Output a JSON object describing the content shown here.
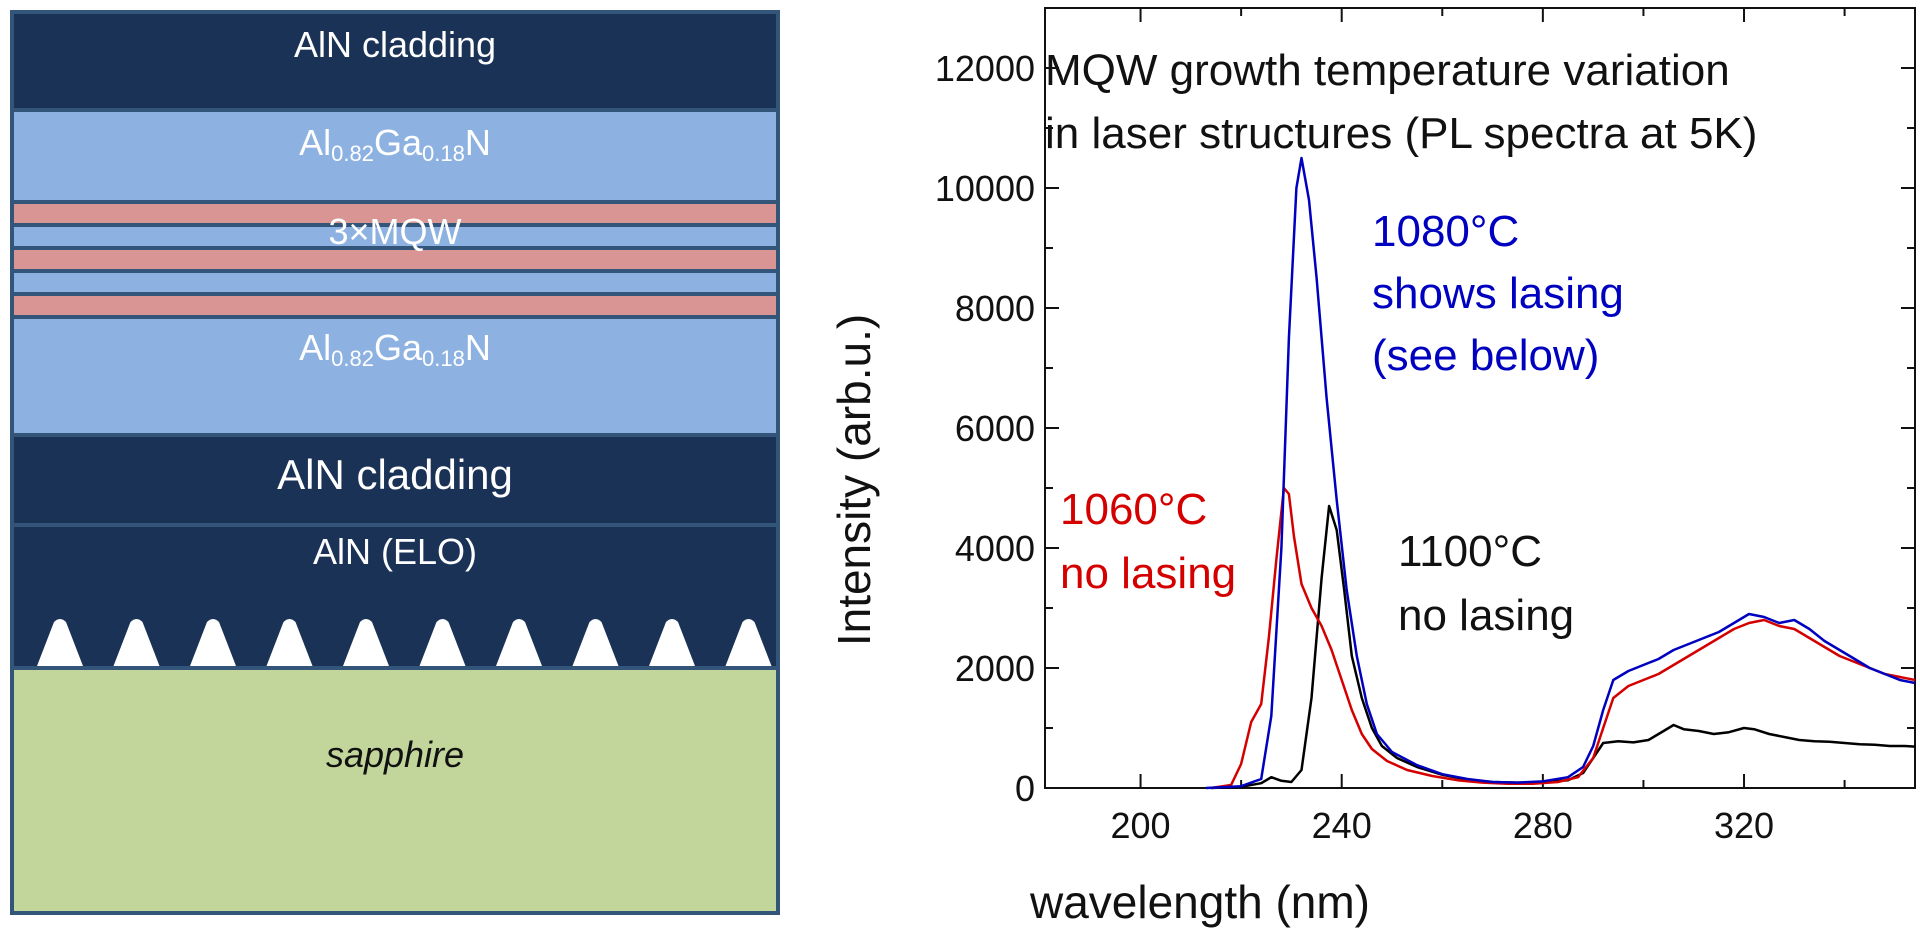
{
  "structure": {
    "layers": [
      {
        "key": "aln_top",
        "label": "AlN cladding"
      },
      {
        "key": "algan_top",
        "base": "Al",
        "sub1": "0.82",
        "mid": "Ga",
        "sub2": "0.18",
        "end": "N"
      },
      {
        "key": "mqw",
        "label": "3×MQW"
      },
      {
        "key": "algan_bottom",
        "base": "Al",
        "sub1": "0.82",
        "mid": "Ga",
        "sub2": "0.18",
        "end": "N"
      },
      {
        "key": "aln_mid",
        "label": "AlN cladding"
      },
      {
        "key": "aln_elo",
        "label": "AlN (ELO)"
      },
      {
        "key": "sapphire",
        "label": "sapphire"
      }
    ],
    "void_count": 10,
    "colors": {
      "navy": "#1b3257",
      "light_blue": "#8db2e2",
      "pink": "#d99594",
      "sapphire": "#c2d69b",
      "border": "#33557a"
    }
  },
  "chart_data": {
    "type": "line",
    "title": "MQW growth temperature variation in laser structures (PL spectra at 5K)",
    "title_lines": [
      "MQW growth temperature variation",
      "in laser structures (PL spectra at 5K)"
    ],
    "xlabel": "wavelength (nm)",
    "ylabel": "Intensity (arb.u.)",
    "xlim": [
      181,
      354
    ],
    "ylim": [
      0,
      13000
    ],
    "xticks": [
      200,
      240,
      280,
      320
    ],
    "yticks": [
      0,
      2000,
      4000,
      6000,
      8000,
      10000,
      12000
    ],
    "series": [
      {
        "name": "1080°C",
        "color": "#0000c0",
        "annotation": [
          "1080°C",
          "shows lasing",
          "(see below)"
        ],
        "points": [
          [
            213,
            0
          ],
          [
            220,
            30
          ],
          [
            224,
            150
          ],
          [
            226,
            1200
          ],
          [
            228,
            4000
          ],
          [
            229.5,
            7500
          ],
          [
            231,
            10000
          ],
          [
            232,
            10500
          ],
          [
            233.5,
            9800
          ],
          [
            235,
            8500
          ],
          [
            237,
            6500
          ],
          [
            239,
            4800
          ],
          [
            241,
            3300
          ],
          [
            243,
            2200
          ],
          [
            245,
            1400
          ],
          [
            247,
            900
          ],
          [
            250,
            600
          ],
          [
            255,
            380
          ],
          [
            260,
            230
          ],
          [
            265,
            150
          ],
          [
            270,
            100
          ],
          [
            275,
            90
          ],
          [
            280,
            110
          ],
          [
            285,
            180
          ],
          [
            288,
            350
          ],
          [
            290,
            700
          ],
          [
            292,
            1300
          ],
          [
            294,
            1800
          ],
          [
            297,
            1950
          ],
          [
            300,
            2050
          ],
          [
            303,
            2150
          ],
          [
            306,
            2300
          ],
          [
            309,
            2400
          ],
          [
            312,
            2500
          ],
          [
            315,
            2600
          ],
          [
            318,
            2750
          ],
          [
            321,
            2900
          ],
          [
            324,
            2850
          ],
          [
            327,
            2750
          ],
          [
            330,
            2800
          ],
          [
            333,
            2650
          ],
          [
            336,
            2450
          ],
          [
            339,
            2300
          ],
          [
            342,
            2150
          ],
          [
            345,
            2000
          ],
          [
            348,
            1900
          ],
          [
            351,
            1800
          ],
          [
            354,
            1750
          ]
        ]
      },
      {
        "name": "1060°C",
        "color": "#d40000",
        "annotation": [
          "1060°C",
          "no lasing"
        ],
        "points": [
          [
            214,
            0
          ],
          [
            218,
            50
          ],
          [
            220,
            400
          ],
          [
            222,
            1100
          ],
          [
            224,
            1400
          ],
          [
            225.5,
            2500
          ],
          [
            227,
            3800
          ],
          [
            228.5,
            5000
          ],
          [
            229.5,
            4900
          ],
          [
            230.5,
            4200
          ],
          [
            232,
            3400
          ],
          [
            234,
            3000
          ],
          [
            236,
            2700
          ],
          [
            238,
            2300
          ],
          [
            240,
            1800
          ],
          [
            242,
            1300
          ],
          [
            244,
            900
          ],
          [
            246,
            650
          ],
          [
            249,
            450
          ],
          [
            253,
            300
          ],
          [
            258,
            200
          ],
          [
            263,
            130
          ],
          [
            268,
            90
          ],
          [
            273,
            70
          ],
          [
            278,
            70
          ],
          [
            283,
            100
          ],
          [
            287,
            180
          ],
          [
            290,
            500
          ],
          [
            292,
            1000
          ],
          [
            294,
            1500
          ],
          [
            297,
            1700
          ],
          [
            300,
            1800
          ],
          [
            303,
            1900
          ],
          [
            306,
            2050
          ],
          [
            309,
            2200
          ],
          [
            312,
            2350
          ],
          [
            315,
            2500
          ],
          [
            318,
            2650
          ],
          [
            321,
            2750
          ],
          [
            324,
            2800
          ],
          [
            327,
            2700
          ],
          [
            330,
            2650
          ],
          [
            333,
            2500
          ],
          [
            336,
            2350
          ],
          [
            339,
            2200
          ],
          [
            342,
            2100
          ],
          [
            345,
            2000
          ],
          [
            348,
            1900
          ],
          [
            351,
            1850
          ],
          [
            354,
            1800
          ]
        ]
      },
      {
        "name": "1100°C",
        "color": "#000000",
        "annotation": [
          "1100°C",
          "no lasing"
        ],
        "points": [
          [
            214,
            0
          ],
          [
            220,
            20
          ],
          [
            224,
            80
          ],
          [
            226,
            180
          ],
          [
            228,
            120
          ],
          [
            230,
            100
          ],
          [
            232,
            300
          ],
          [
            234,
            1500
          ],
          [
            236,
            3500
          ],
          [
            237.5,
            4700
          ],
          [
            239,
            4300
          ],
          [
            240.5,
            3300
          ],
          [
            242,
            2200
          ],
          [
            244,
            1500
          ],
          [
            246,
            1000
          ],
          [
            248,
            700
          ],
          [
            251,
            500
          ],
          [
            255,
            350
          ],
          [
            260,
            220
          ],
          [
            265,
            140
          ],
          [
            270,
            100
          ],
          [
            275,
            90
          ],
          [
            280,
            100
          ],
          [
            285,
            130
          ],
          [
            288,
            250
          ],
          [
            290,
            500
          ],
          [
            292,
            750
          ],
          [
            295,
            780
          ],
          [
            298,
            760
          ],
          [
            301,
            800
          ],
          [
            304,
            950
          ],
          [
            306,
            1050
          ],
          [
            308,
            980
          ],
          [
            311,
            950
          ],
          [
            314,
            900
          ],
          [
            317,
            930
          ],
          [
            320,
            1000
          ],
          [
            322,
            980
          ],
          [
            325,
            900
          ],
          [
            328,
            850
          ],
          [
            331,
            800
          ],
          [
            334,
            780
          ],
          [
            337,
            770
          ],
          [
            340,
            750
          ],
          [
            343,
            730
          ],
          [
            346,
            720
          ],
          [
            349,
            700
          ],
          [
            352,
            700
          ],
          [
            354,
            690
          ]
        ]
      }
    ]
  }
}
